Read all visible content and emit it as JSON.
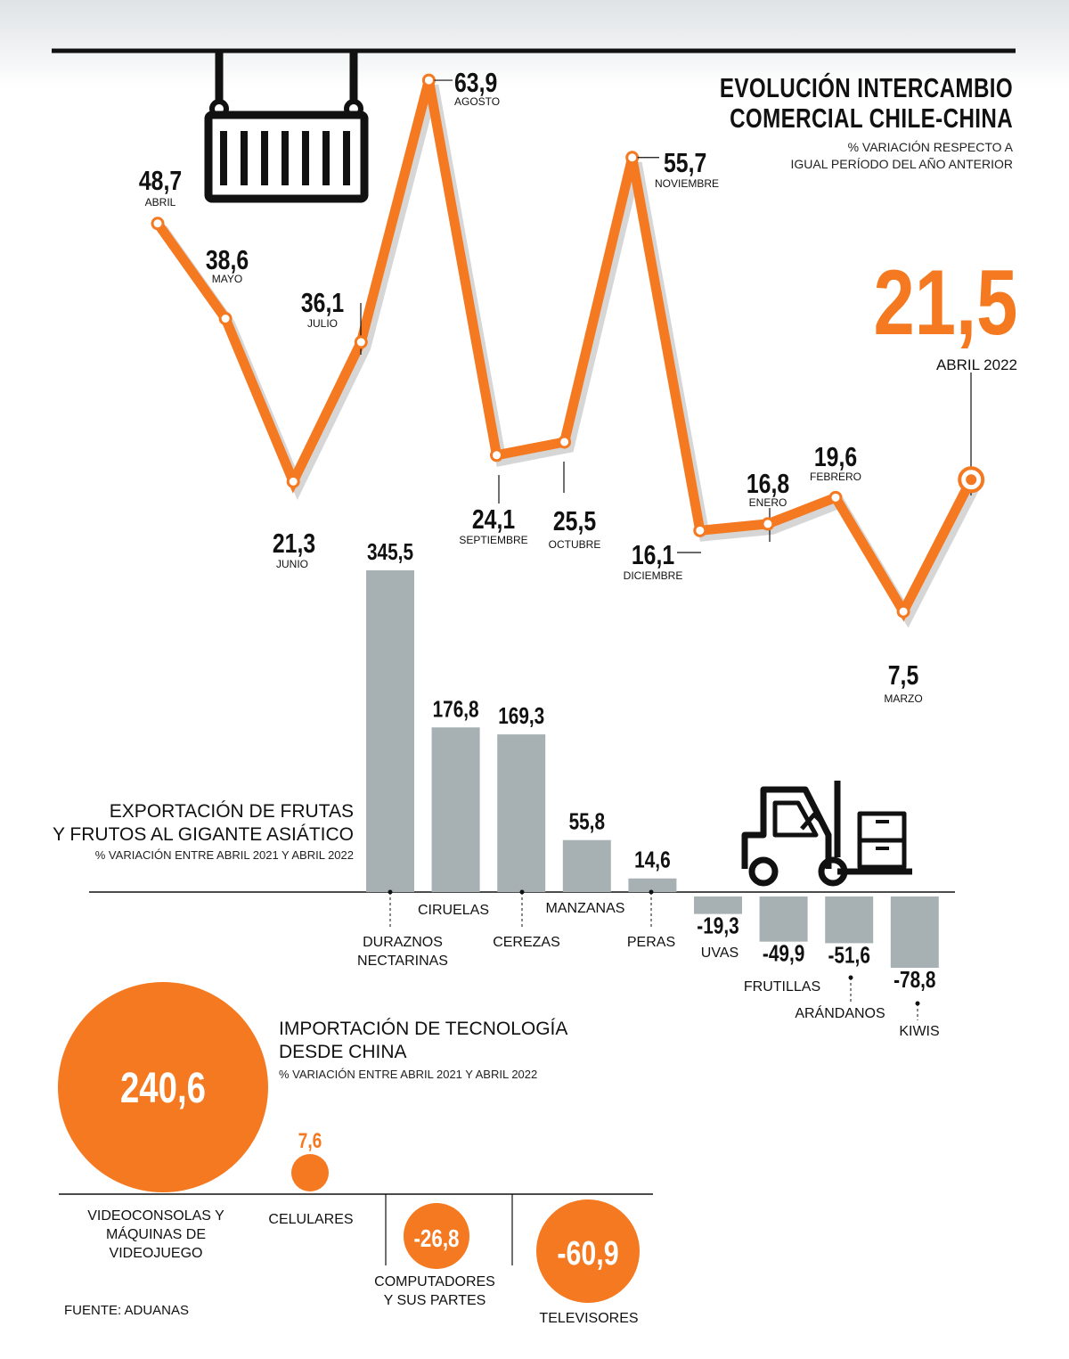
{
  "header": {
    "title_line1": "EVOLUCIÓN INTERCAMBIO",
    "title_line2": "COMERCIAL CHILE-CHINA",
    "subtitle_line1": "% VARIACIÓN RESPECTO A",
    "subtitle_line2": "IGUAL PERÍODO DEL AÑO ANTERIOR",
    "highlight_value": "21,5",
    "highlight_label": "ABRIL 2022"
  },
  "fruits_section": {
    "title_line1": "EXPORTACIÓN DE FRUTAS",
    "title_line2": "Y FRUTOS AL GIGANTE ASIÁTICO",
    "subtitle": "% VARIACIÓN ENTRE ABRIL 2021 Y ABRIL 2022"
  },
  "tech_section": {
    "title_line1": "IMPORTACIÓN DE TECNOLOGÍA",
    "title_line2": "DESDE CHINA",
    "subtitle": "% VARIACIÓN ENTRE ABRIL 2021 Y ABRIL 2022"
  },
  "source": "FUENTE: ADUANAS",
  "colors": {
    "orange": "#f47920",
    "gray_bar": "#a7b0b3",
    "text": "#111111"
  },
  "icons": [
    "shipping-container-icon",
    "forklift-icon"
  ],
  "chart_data": [
    {
      "type": "line",
      "points": [
        {
          "label": "ABRIL",
          "value": 48.7,
          "value_text": "48,7"
        },
        {
          "label": "MAYO",
          "value": 38.6,
          "value_text": "38,6"
        },
        {
          "label": "JUNIO",
          "value": 21.3,
          "value_text": "21,3"
        },
        {
          "label": "JULIO",
          "value": 36.1,
          "value_text": "36,1"
        },
        {
          "label": "AGOSTO",
          "value": 63.9,
          "value_text": "63,9"
        },
        {
          "label": "SEPTIEMBRE",
          "value": 24.1,
          "value_text": "24,1"
        },
        {
          "label": "OCTUBRE",
          "value": 25.5,
          "value_text": "25,5"
        },
        {
          "label": "NOVIEMBRE",
          "value": 55.7,
          "value_text": "55,7"
        },
        {
          "label": "DICIEMBRE",
          "value": 16.1,
          "value_text": "16,1"
        },
        {
          "label": "ENERO",
          "value": 16.8,
          "value_text": "16,8"
        },
        {
          "label": "FEBRERO",
          "value": 19.6,
          "value_text": "19,6"
        },
        {
          "label": "MARZO",
          "value": 7.5,
          "value_text": "7,5"
        },
        {
          "label": "ABRIL 2022",
          "value": 21.5,
          "value_text": "21,5"
        }
      ],
      "grid": false
    },
    {
      "type": "bar",
      "bars": [
        {
          "category": "DURAZNOS NECTARINAS",
          "value": 345.5,
          "value_text": "345,5"
        },
        {
          "category": "CIRUELAS",
          "value": 176.8,
          "value_text": "176,8"
        },
        {
          "category": "CEREZAS",
          "value": 169.3,
          "value_text": "169,3"
        },
        {
          "category": "MANZANAS",
          "value": 55.8,
          "value_text": "55,8"
        },
        {
          "category": "PERAS",
          "value": 14.6,
          "value_text": "14,6"
        },
        {
          "category": "UVAS",
          "value": -19.3,
          "value_text": "-19,3"
        },
        {
          "category": "FRUTILLAS",
          "value": -49.9,
          "value_text": "-49,9"
        },
        {
          "category": "ARÁNDANOS",
          "value": -51.6,
          "value_text": "-51,6"
        },
        {
          "category": "KIWIS",
          "value": -78.8,
          "value_text": "-78,8"
        }
      ],
      "grid": false
    },
    {
      "type": "bubble",
      "items": [
        {
          "category": "VIDEOCONSOLAS Y MÁQUINAS DE VIDEOJUEGO",
          "value": 240.6,
          "value_text": "240,6"
        },
        {
          "category": "CELULARES",
          "value": 7.6,
          "value_text": "7,6"
        },
        {
          "category": "COMPUTADORES Y SUS PARTES",
          "value": -26.8,
          "value_text": "-26,8"
        },
        {
          "category": "TELEVISORES",
          "value": -60.9,
          "value_text": "-60,9"
        }
      ]
    }
  ]
}
